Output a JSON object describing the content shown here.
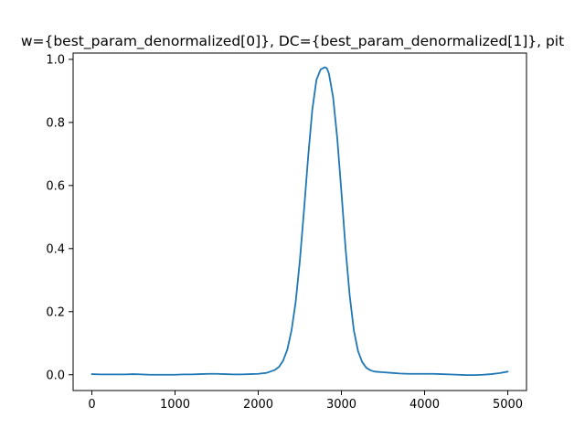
{
  "chart_data": {
    "type": "line",
    "title": "w={best_param_denormalized[0]}, DC={best_param_denormalized[1]}, pit",
    "xlabel": "",
    "ylabel": "",
    "xlim": [
      -225,
      5225
    ],
    "ylim": [
      -0.05,
      1.02
    ],
    "xticks": [
      0,
      1000,
      2000,
      3000,
      4000,
      5000
    ],
    "xtick_labels": [
      "0",
      "1000",
      "2000",
      "3000",
      "4000",
      "5000"
    ],
    "yticks": [
      0.0,
      0.2,
      0.4,
      0.6,
      0.8,
      1.0
    ],
    "ytick_labels": [
      "0.0",
      "0.2",
      "0.4",
      "0.6",
      "0.8",
      "1.0"
    ],
    "grid": false,
    "legend": "none",
    "series": [
      {
        "color": "#1f77b4",
        "x": [
          0,
          100,
          200,
          300,
          400,
          500,
          600,
          700,
          800,
          900,
          1000,
          1100,
          1200,
          1300,
          1400,
          1500,
          1600,
          1700,
          1800,
          1900,
          2000,
          2100,
          2200,
          2250,
          2300,
          2350,
          2400,
          2450,
          2500,
          2550,
          2600,
          2650,
          2700,
          2750,
          2800,
          2825,
          2850,
          2900,
          2950,
          3000,
          3050,
          3100,
          3150,
          3200,
          3250,
          3300,
          3350,
          3400,
          3500,
          3600,
          3700,
          3800,
          3900,
          4000,
          4100,
          4200,
          4300,
          4400,
          4500,
          4600,
          4700,
          4800,
          4900,
          5000
        ],
        "y": [
          0.002,
          0.001,
          0.001,
          0.001,
          0.001,
          0.002,
          0.001,
          0.0,
          0.0,
          0.0,
          0.0,
          0.001,
          0.001,
          0.002,
          0.003,
          0.003,
          0.002,
          0.001,
          0.001,
          0.002,
          0.003,
          0.006,
          0.015,
          0.025,
          0.045,
          0.08,
          0.14,
          0.23,
          0.36,
          0.52,
          0.69,
          0.84,
          0.935,
          0.968,
          0.975,
          0.972,
          0.955,
          0.88,
          0.75,
          0.58,
          0.4,
          0.25,
          0.14,
          0.075,
          0.04,
          0.022,
          0.014,
          0.01,
          0.008,
          0.006,
          0.004,
          0.003,
          0.003,
          0.003,
          0.003,
          0.002,
          0.001,
          0.0,
          -0.001,
          -0.001,
          0.0,
          0.002,
          0.005,
          0.01
        ]
      }
    ]
  }
}
